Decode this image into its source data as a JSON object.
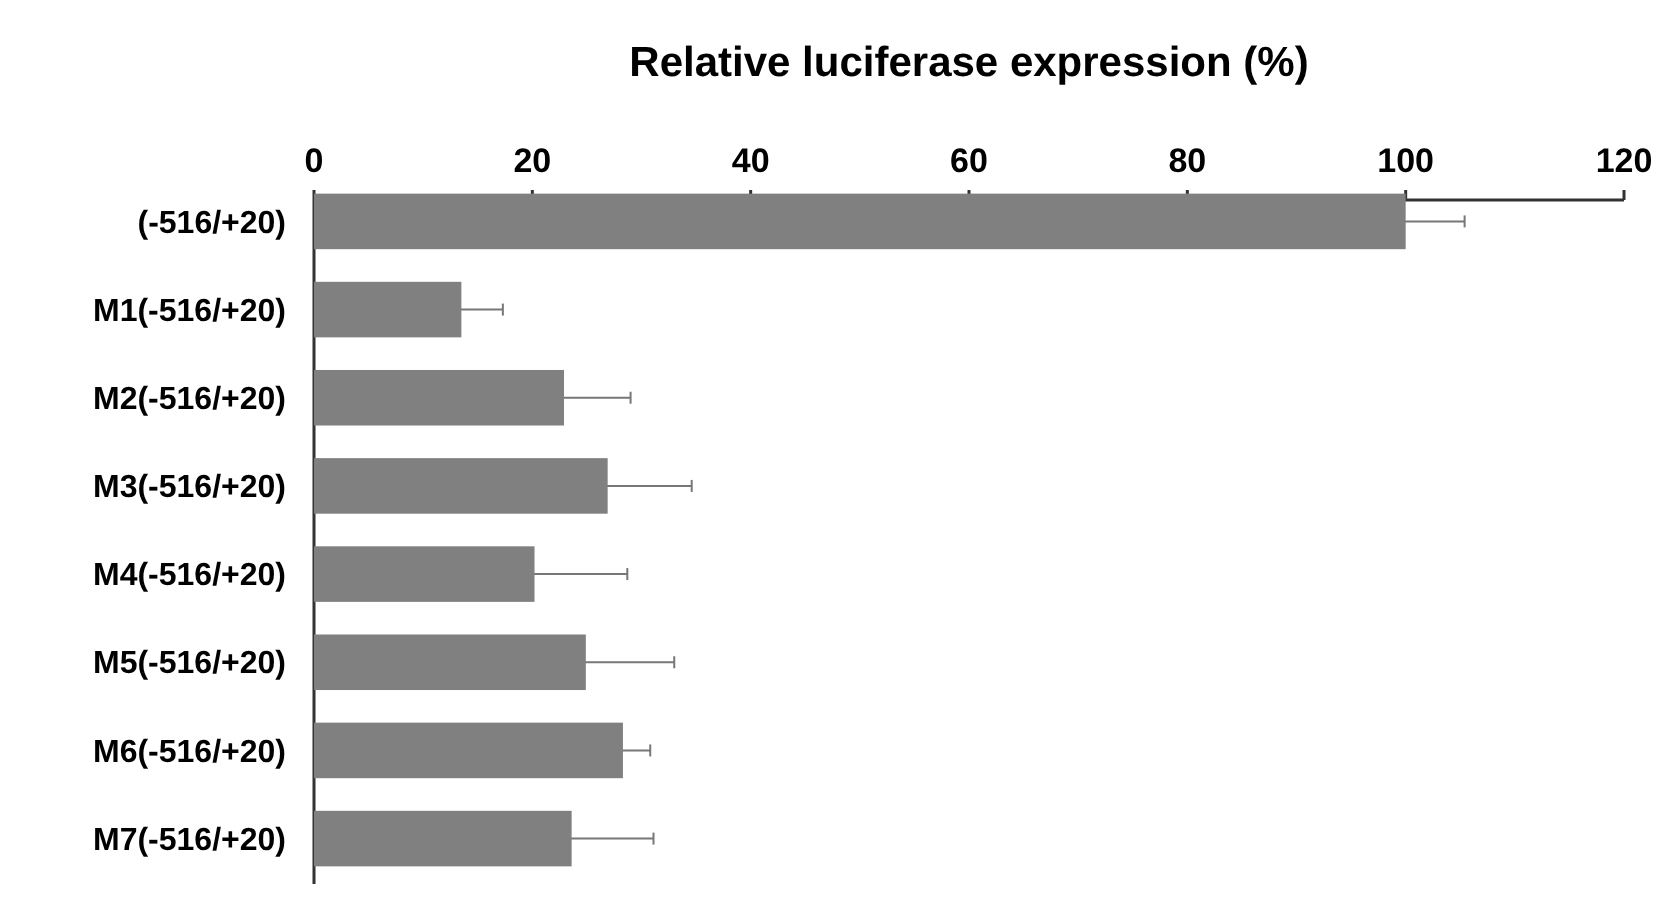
{
  "chart_data": {
    "type": "bar",
    "orientation": "horizontal",
    "title": "Relative luciferase expression (%)",
    "categories": [
      "(-516/+20)",
      "M1(-516/+20)",
      "M2(-516/+20)",
      "M3(-516/+20)",
      "M4(-516/+20)",
      "M5(-516/+20)",
      "M6(-516/+20)",
      "M7(-516/+20)"
    ],
    "values": [
      100,
      13.5,
      22.9,
      26.9,
      20.2,
      24.9,
      28.3,
      23.6
    ],
    "errors": [
      5.4,
      3.8,
      6.1,
      7.7,
      8.5,
      8.1,
      2.5,
      7.5
    ],
    "color": "#808080",
    "xlim": [
      0,
      120
    ],
    "xticks": [
      0,
      20,
      40,
      60,
      80,
      100,
      120
    ],
    "grid": false
  }
}
